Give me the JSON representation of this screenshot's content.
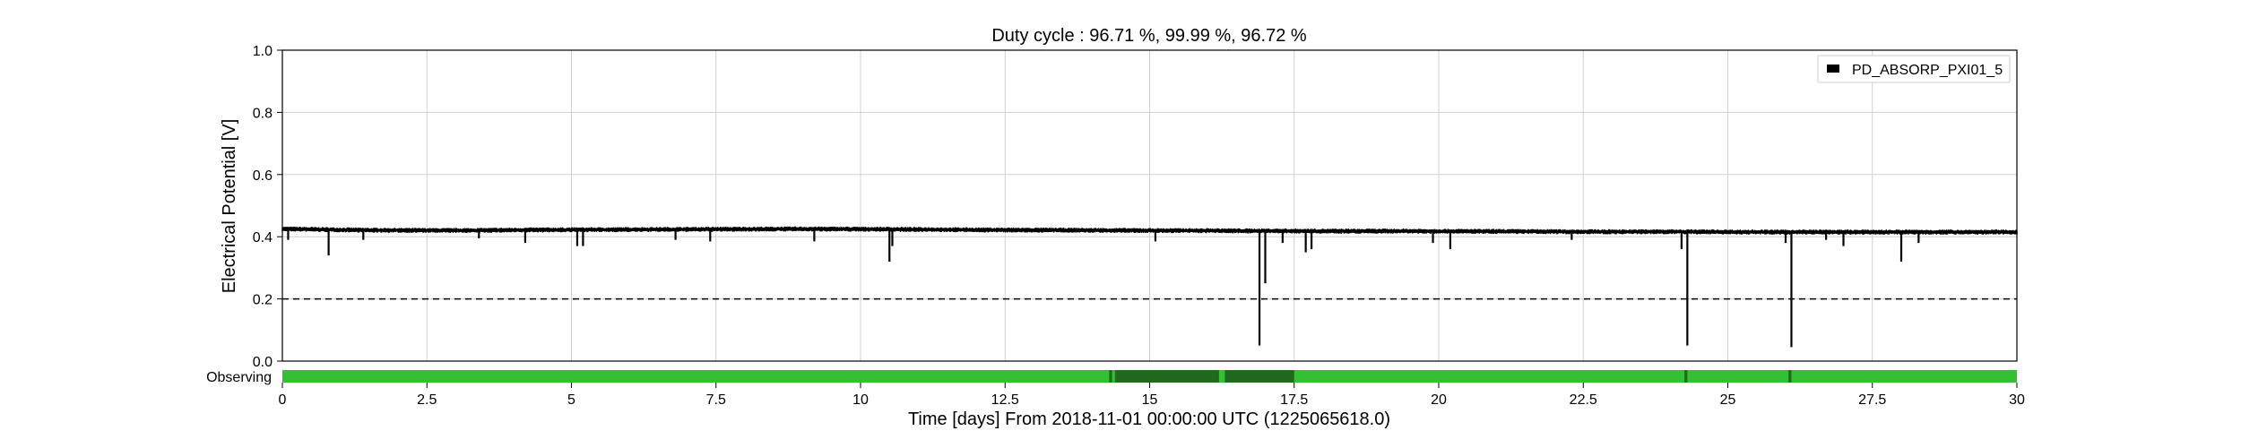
{
  "chart_data": {
    "type": "line",
    "title": "Duty cycle : 96.71 %, 99.99 %, 96.72 %",
    "xlabel": "Time [days] From 2018-11-01 00:00:00 UTC (1225065618.0)",
    "ylabel": "Electrical Potential [V]",
    "xlim": [
      0,
      30
    ],
    "ylim": [
      0,
      1.0
    ],
    "x_ticks": [
      0,
      2.5,
      5,
      7.5,
      10,
      12.5,
      15,
      17.5,
      20,
      22.5,
      25,
      27.5,
      30
    ],
    "x_tick_labels": [
      "0",
      "2.5",
      "5",
      "7.5",
      "10",
      "12.5",
      "15",
      "17.5",
      "20",
      "22.5",
      "25",
      "27.5",
      "30"
    ],
    "y_ticks": [
      0,
      0.2,
      0.4,
      0.6,
      0.8,
      1.0
    ],
    "y_tick_labels": [
      "0.0",
      "0.2",
      "0.4",
      "0.6",
      "0.8",
      "1.0"
    ],
    "grid": true,
    "legend_position": "top-right",
    "threshold": {
      "y": 0.2,
      "style": "dashed"
    },
    "series": [
      {
        "name": "PD_ABSORP_PXI01_5",
        "color": "#000000",
        "baseline": 0.42,
        "x": [
          0,
          1.5,
          3,
          4.5,
          6,
          7.5,
          9,
          10.5,
          12,
          13.5,
          15,
          16.5,
          18,
          19.5,
          21,
          22.5,
          24,
          25.5,
          27,
          28.5,
          30
        ],
        "values": [
          0.425,
          0.421,
          0.42,
          0.422,
          0.423,
          0.424,
          0.425,
          0.424,
          0.422,
          0.421,
          0.42,
          0.419,
          0.418,
          0.418,
          0.417,
          0.416,
          0.416,
          0.415,
          0.415,
          0.415,
          0.415
        ],
        "dips": [
          {
            "x": 0.1,
            "y": 0.39
          },
          {
            "x": 0.8,
            "y": 0.34
          },
          {
            "x": 1.4,
            "y": 0.39
          },
          {
            "x": 3.4,
            "y": 0.395
          },
          {
            "x": 4.2,
            "y": 0.38
          },
          {
            "x": 5.1,
            "y": 0.37
          },
          {
            "x": 5.2,
            "y": 0.37
          },
          {
            "x": 6.8,
            "y": 0.39
          },
          {
            "x": 7.4,
            "y": 0.385
          },
          {
            "x": 9.2,
            "y": 0.385
          },
          {
            "x": 10.5,
            "y": 0.32
          },
          {
            "x": 10.55,
            "y": 0.37
          },
          {
            "x": 15.1,
            "y": 0.385
          },
          {
            "x": 16.9,
            "y": 0.05
          },
          {
            "x": 17.0,
            "y": 0.25
          },
          {
            "x": 17.3,
            "y": 0.38
          },
          {
            "x": 17.7,
            "y": 0.35
          },
          {
            "x": 17.8,
            "y": 0.36
          },
          {
            "x": 19.9,
            "y": 0.38
          },
          {
            "x": 20.2,
            "y": 0.36
          },
          {
            "x": 22.3,
            "y": 0.39
          },
          {
            "x": 24.2,
            "y": 0.36
          },
          {
            "x": 24.3,
            "y": 0.05
          },
          {
            "x": 26.0,
            "y": 0.38
          },
          {
            "x": 26.1,
            "y": 0.045
          },
          {
            "x": 26.7,
            "y": 0.39
          },
          {
            "x": 27.0,
            "y": 0.37
          },
          {
            "x": 28.0,
            "y": 0.32
          },
          {
            "x": 28.3,
            "y": 0.38
          }
        ]
      }
    ],
    "segments": {
      "label": "Observing",
      "color": "#33c033",
      "dark_color": "#1e6b1e",
      "flagged": [
        {
          "start": 14.3,
          "end": 14.35
        },
        {
          "start": 14.4,
          "end": 16.2
        },
        {
          "start": 16.3,
          "end": 17.5
        },
        {
          "start": 24.25,
          "end": 24.3
        },
        {
          "start": 26.05,
          "end": 26.1
        }
      ]
    }
  }
}
